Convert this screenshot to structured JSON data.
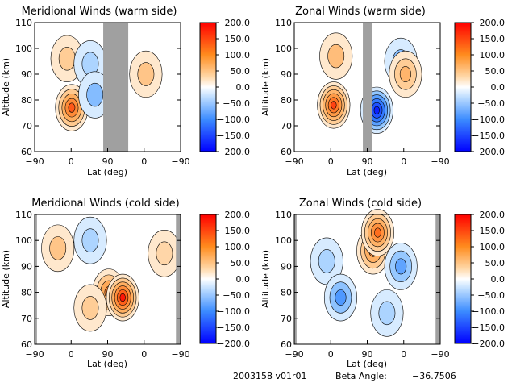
{
  "colorbar": {
    "ticks": [
      "200.0",
      "150.0",
      "100.0",
      "50.0",
      "0.0",
      "−50.0",
      "−100.0",
      "−150.0",
      "−200.0"
    ],
    "values": [
      200,
      150,
      100,
      50,
      0,
      -50,
      -100,
      -150,
      -200
    ],
    "colors": [
      "#ff0000",
      "#ff8c1e",
      "#ffd8a8",
      "#ffffff",
      "#bcdcff",
      "#3c8cff",
      "#0000ff"
    ]
  },
  "footer": {
    "id": "2003158 v01r01",
    "beta_label": "Beta Angle:",
    "beta_value": "−36.7506"
  },
  "chart_data": [
    {
      "type": "heatmap",
      "title": "Meridional Winds (warm side)",
      "xlabel": "Lat (deg)",
      "ylabel": "Altitude (km)",
      "xticks": [
        "−90",
        "0",
        "90",
        "0",
        "−90"
      ],
      "yticks": [
        "60",
        "70",
        "80",
        "90",
        "100",
        "110"
      ],
      "ylim": [
        60,
        110
      ],
      "clim": [
        -200,
        200
      ],
      "gray_bands": [
        [
          58,
          112
        ]
      ],
      "features": [
        {
          "lat": -10,
          "alt": 77,
          "value": 160
        },
        {
          "lat": -20,
          "alt": 96,
          "value": 50
        },
        {
          "lat": 30,
          "alt": 94,
          "value": -40
        },
        {
          "lat": 40,
          "alt": 82,
          "value": -60
        },
        {
          "lat": 150,
          "alt": 90,
          "value": 60
        }
      ]
    },
    {
      "type": "heatmap",
      "title": "Zonal Winds (warm side)",
      "xlabel": "Lat (deg)",
      "ylabel": "Altitude (km)",
      "xticks": [
        "−90",
        "0",
        "90",
        "0",
        "−90"
      ],
      "yticks": [
        "60",
        "70",
        "80",
        "90",
        "100",
        "110"
      ],
      "ylim": [
        60,
        110
      ],
      "clim": [
        -200,
        200
      ],
      "gray_bands": [
        [
          58,
          78
        ]
      ],
      "features": [
        {
          "lat": -5,
          "alt": 78,
          "value": 170
        },
        {
          "lat": 0,
          "alt": 97,
          "value": 70
        },
        {
          "lat": 88,
          "alt": 76,
          "value": -180
        },
        {
          "lat": 140,
          "alt": 95,
          "value": -60
        },
        {
          "lat": 150,
          "alt": 90,
          "value": 80
        }
      ]
    },
    {
      "type": "heatmap",
      "title": "Meridional Winds (cold side)",
      "xlabel": "Lat (deg)",
      "ylabel": "Altitude (km)",
      "xticks": [
        "−90",
        "0",
        "90",
        "0",
        "−90"
      ],
      "yticks": [
        "60",
        "70",
        "80",
        "90",
        "100",
        "110"
      ],
      "ylim": [
        60,
        110
      ],
      "clim": [
        -200,
        200
      ],
      "gray_bands": [
        [
          -95,
          -85
        ],
        [
          215,
          225
        ]
      ],
      "features": [
        {
          "lat": -40,
          "alt": 97,
          "value": 60
        },
        {
          "lat": 30,
          "alt": 100,
          "value": -40
        },
        {
          "lat": 70,
          "alt": 80,
          "value": 130
        },
        {
          "lat": 100,
          "alt": 78,
          "value": 190
        },
        {
          "lat": 30,
          "alt": 74,
          "value": 50
        },
        {
          "lat": 190,
          "alt": 95,
          "value": 40
        }
      ]
    },
    {
      "type": "heatmap",
      "title": "Zonal Winds (cold side)",
      "xlabel": "Lat (deg)",
      "ylabel": "Altitude (km)",
      "xticks": [
        "−90",
        "0",
        "90",
        "0",
        "−90"
      ],
      "yticks": [
        "60",
        "70",
        "80",
        "90",
        "100",
        "110"
      ],
      "ylim": [
        60,
        110
      ],
      "clim": [
        -200,
        200
      ],
      "gray_bands": [
        [
          -95,
          -85
        ],
        [
          215,
          225
        ]
      ],
      "features": [
        {
          "lat": -20,
          "alt": 92,
          "value": -40
        },
        {
          "lat": 10,
          "alt": 78,
          "value": -90
        },
        {
          "lat": 80,
          "alt": 96,
          "value": 120
        },
        {
          "lat": 90,
          "alt": 103,
          "value": 150
        },
        {
          "lat": 140,
          "alt": 90,
          "value": -80
        },
        {
          "lat": 110,
          "alt": 72,
          "value": -40
        }
      ]
    }
  ]
}
